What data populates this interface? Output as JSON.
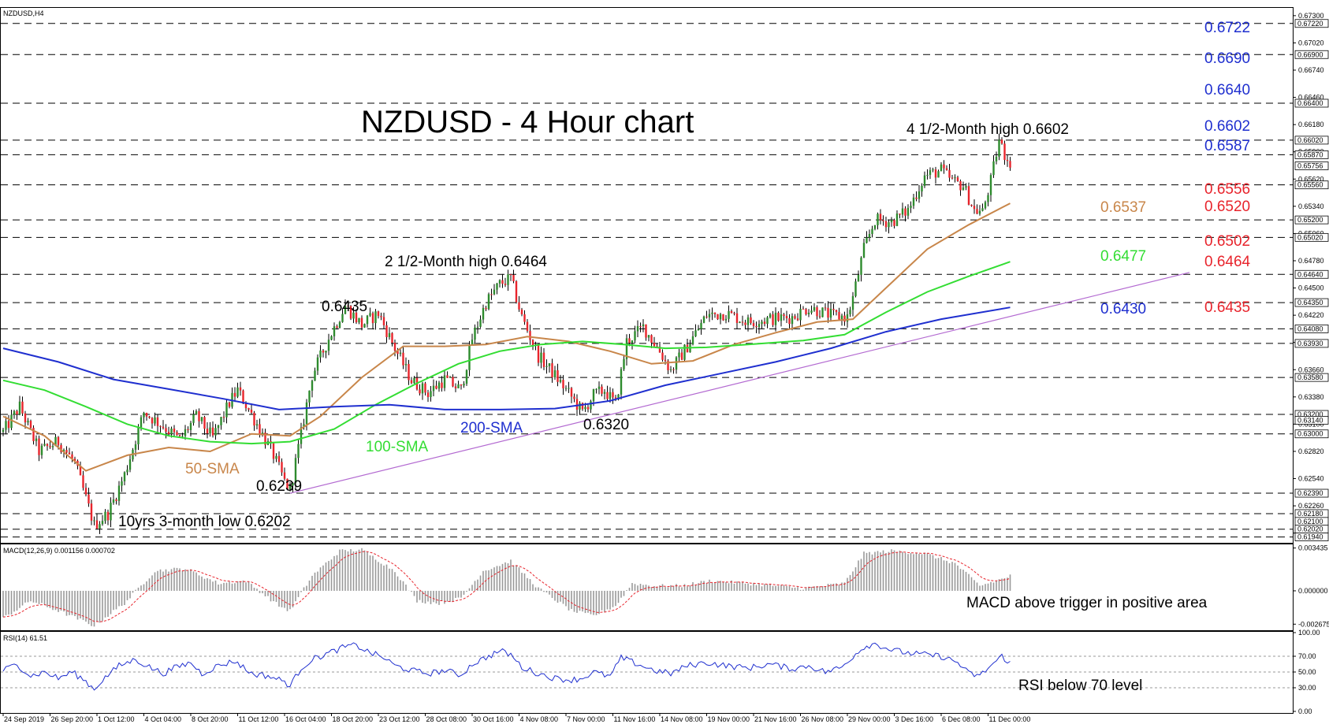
{
  "window": {
    "symbol_label": "NZDUSD,H4"
  },
  "chart_data": {
    "type": "line",
    "title": "NZDUSD - 4 Hour chart",
    "price_axis": {
      "ylim": [
        0.6188,
        0.6738
      ],
      "ticks": [
        "0.67300",
        "0.67020",
        "0.66740",
        "0.66460",
        "0.66180",
        "0.65900",
        "0.65620",
        "0.65340",
        "0.65060",
        "0.64780",
        "0.64500",
        "0.64220",
        "0.63940",
        "0.63660",
        "0.63380",
        "0.63100",
        "0.62820",
        "0.62540",
        "0.62260",
        "0.61980"
      ],
      "ticks_values": [
        0.673,
        0.6702,
        0.6674,
        0.6646,
        0.6618,
        0.659,
        0.6562,
        0.6534,
        0.6506,
        0.6478,
        0.645,
        0.6422,
        0.6394,
        0.6366,
        0.6338,
        0.631,
        0.6282,
        0.6254,
        0.6226,
        0.6198
      ],
      "tagged_levels": [
        {
          "value": 0.6722,
          "text": "0.67220"
        },
        {
          "value": 0.669,
          "text": "0.66900"
        },
        {
          "value": 0.664,
          "text": "0.66400"
        },
        {
          "value": 0.6602,
          "text": "0.66020"
        },
        {
          "value": 0.6587,
          "text": "0.65870"
        },
        {
          "value": 0.65756,
          "text": "0.65756"
        },
        {
          "value": 0.6556,
          "text": "0.65560"
        },
        {
          "value": 0.652,
          "text": "0.65200"
        },
        {
          "value": 0.6502,
          "text": "0.65020"
        },
        {
          "value": 0.6464,
          "text": "0.64640"
        },
        {
          "value": 0.6435,
          "text": "0.64350"
        },
        {
          "value": 0.6408,
          "text": "0.64080"
        },
        {
          "value": 0.6393,
          "text": "0.63930"
        },
        {
          "value": 0.6358,
          "text": "0.63580"
        },
        {
          "value": 0.632,
          "text": "0.63200"
        },
        {
          "value": 0.6314,
          "text": "0.63140"
        },
        {
          "value": 0.63,
          "text": "0.63000"
        },
        {
          "value": 0.6239,
          "text": "0.62390"
        },
        {
          "value": 0.6218,
          "text": "0.62180"
        },
        {
          "value": 0.621,
          "text": "0.62100"
        },
        {
          "value": 0.6202,
          "text": "0.62020"
        },
        {
          "value": 0.6194,
          "text": "0.61940"
        }
      ]
    },
    "x_axis": {
      "labels": [
        "24 Sep 2019",
        "26 Sep 20:00",
        "1 Oct 12:00",
        "4 Oct 04:00",
        "8 Oct 20:00",
        "11 Oct 12:00",
        "16 Oct 04:00",
        "18 Oct 20:00",
        "23 Oct 12:00",
        "28 Oct 08:00",
        "30 Oct 16:00",
        "4 Nov 08:00",
        "7 Nov 00:00",
        "11 Nov 16:00",
        "14 Nov 08:00",
        "19 Nov 00:00",
        "21 Nov 16:00",
        "26 Nov 08:00",
        "29 Nov 00:00",
        "3 Dec 16:00",
        "6 Dec 08:00",
        "11 Dec 00:00"
      ],
      "label_bar_index": [
        0,
        17,
        34,
        51,
        68,
        85,
        102,
        119,
        136,
        153,
        170,
        187,
        204,
        221,
        238,
        255,
        272,
        289,
        306,
        323,
        340,
        357
      ]
    },
    "horizontal_levels": [
      0.6722,
      0.669,
      0.664,
      0.6602,
      0.6587,
      0.6556,
      0.652,
      0.6502,
      0.6464,
      0.6435,
      0.6408,
      0.6393,
      0.6358,
      0.632,
      0.63,
      0.6239,
      0.6218,
      0.6202,
      0.6194
    ],
    "trendline": {
      "start": [
        104,
        0.6239
      ],
      "end": [
        430,
        0.6466
      ]
    },
    "price_path": [
      [
        0,
        0.6302
      ],
      [
        6,
        0.6328
      ],
      [
        13,
        0.6282
      ],
      [
        20,
        0.6292
      ],
      [
        26,
        0.627
      ],
      [
        33,
        0.6206
      ],
      [
        38,
        0.6218
      ],
      [
        44,
        0.6258
      ],
      [
        51,
        0.6322
      ],
      [
        58,
        0.6308
      ],
      [
        64,
        0.6294
      ],
      [
        70,
        0.6318
      ],
      [
        76,
        0.6296
      ],
      [
        82,
        0.6332
      ],
      [
        85,
        0.6345
      ],
      [
        92,
        0.631
      ],
      [
        98,
        0.6278
      ],
      [
        102,
        0.6251
      ],
      [
        104,
        0.6242
      ],
      [
        108,
        0.63
      ],
      [
        112,
        0.636
      ],
      [
        118,
        0.6398
      ],
      [
        124,
        0.6432
      ],
      [
        130,
        0.6412
      ],
      [
        136,
        0.6424
      ],
      [
        142,
        0.6388
      ],
      [
        148,
        0.6355
      ],
      [
        154,
        0.6342
      ],
      [
        160,
        0.6356
      ],
      [
        166,
        0.6345
      ],
      [
        170,
        0.6398
      ],
      [
        175,
        0.6435
      ],
      [
        180,
        0.6454
      ],
      [
        184,
        0.646
      ],
      [
        188,
        0.642
      ],
      [
        194,
        0.638
      ],
      [
        200,
        0.636
      ],
      [
        206,
        0.6338
      ],
      [
        210,
        0.6322
      ],
      [
        214,
        0.634
      ],
      [
        218,
        0.6345
      ],
      [
        222,
        0.633
      ],
      [
        226,
        0.6395
      ],
      [
        232,
        0.641
      ],
      [
        238,
        0.6385
      ],
      [
        242,
        0.6365
      ],
      [
        248,
        0.639
      ],
      [
        255,
        0.6422
      ],
      [
        262,
        0.6424
      ],
      [
        270,
        0.6415
      ],
      [
        278,
        0.6418
      ],
      [
        286,
        0.642
      ],
      [
        292,
        0.643
      ],
      [
        300,
        0.6422
      ],
      [
        306,
        0.642
      ],
      [
        308,
        0.644
      ],
      [
        312,
        0.649
      ],
      [
        316,
        0.652
      ],
      [
        322,
        0.6518
      ],
      [
        328,
        0.653
      ],
      [
        334,
        0.6565
      ],
      [
        340,
        0.6571
      ],
      [
        344,
        0.656
      ],
      [
        348,
        0.6555
      ],
      [
        352,
        0.653
      ],
      [
        355,
        0.6528
      ],
      [
        358,
        0.656
      ],
      [
        361,
        0.6602
      ],
      [
        363,
        0.6587
      ],
      [
        365,
        0.658
      ]
    ],
    "series": [
      {
        "name": "50-SMA",
        "color": "#c8864a",
        "values": [
          [
            0,
            0.6318
          ],
          [
            15,
            0.6298
          ],
          [
            30,
            0.6262
          ],
          [
            45,
            0.6278
          ],
          [
            60,
            0.6286
          ],
          [
            75,
            0.6282
          ],
          [
            90,
            0.63
          ],
          [
            104,
            0.6298
          ],
          [
            115,
            0.6318
          ],
          [
            130,
            0.6358
          ],
          [
            145,
            0.639
          ],
          [
            160,
            0.639
          ],
          [
            175,
            0.6392
          ],
          [
            190,
            0.64
          ],
          [
            205,
            0.6395
          ],
          [
            220,
            0.6385
          ],
          [
            235,
            0.6372
          ],
          [
            250,
            0.6375
          ],
          [
            265,
            0.6392
          ],
          [
            280,
            0.6404
          ],
          [
            295,
            0.6415
          ],
          [
            308,
            0.6418
          ],
          [
            320,
            0.645
          ],
          [
            335,
            0.649
          ],
          [
            350,
            0.6515
          ],
          [
            365,
            0.6537
          ]
        ]
      },
      {
        "name": "100-SMA",
        "color": "#33dd33",
        "values": [
          [
            0,
            0.6355
          ],
          [
            15,
            0.6345
          ],
          [
            30,
            0.6328
          ],
          [
            45,
            0.631
          ],
          [
            60,
            0.6298
          ],
          [
            75,
            0.6292
          ],
          [
            90,
            0.629
          ],
          [
            104,
            0.6292
          ],
          [
            120,
            0.6305
          ],
          [
            135,
            0.633
          ],
          [
            150,
            0.6352
          ],
          [
            165,
            0.6372
          ],
          [
            180,
            0.6385
          ],
          [
            195,
            0.6392
          ],
          [
            210,
            0.6395
          ],
          [
            225,
            0.6392
          ],
          [
            240,
            0.6388
          ],
          [
            255,
            0.6389
          ],
          [
            270,
            0.6392
          ],
          [
            290,
            0.6396
          ],
          [
            305,
            0.6402
          ],
          [
            320,
            0.6425
          ],
          [
            335,
            0.6446
          ],
          [
            350,
            0.6462
          ],
          [
            365,
            0.6477
          ]
        ]
      },
      {
        "name": "200-SMA",
        "color": "#1f2fcf",
        "values": [
          [
            0,
            0.6388
          ],
          [
            20,
            0.6374
          ],
          [
            40,
            0.6356
          ],
          [
            60,
            0.6346
          ],
          [
            80,
            0.6336
          ],
          [
            100,
            0.6325
          ],
          [
            120,
            0.6328
          ],
          [
            140,
            0.633
          ],
          [
            160,
            0.6325
          ],
          [
            180,
            0.6325
          ],
          [
            200,
            0.6326
          ],
          [
            220,
            0.6334
          ],
          [
            240,
            0.635
          ],
          [
            260,
            0.6362
          ],
          [
            280,
            0.6374
          ],
          [
            300,
            0.6388
          ],
          [
            320,
            0.6405
          ],
          [
            340,
            0.6418
          ],
          [
            365,
            0.643
          ]
        ]
      }
    ],
    "annotations": [
      {
        "text": "2 1/2-Month high 0.6464",
        "color": "#000000"
      },
      {
        "text": "4 1/2-Month high 0.6602",
        "color": "#000000"
      },
      {
        "text": "0.6435",
        "color": "#000000"
      },
      {
        "text": "0.6320",
        "color": "#000000"
      },
      {
        "text": "0.6239",
        "color": "#000000"
      },
      {
        "text": "10yrs 3-month low 0.6202",
        "color": "#000000"
      },
      {
        "text": "50-SMA",
        "color": "#c8864a"
      },
      {
        "text": "100-SMA",
        "color": "#33dd33"
      },
      {
        "text": "200-SMA",
        "color": "#1f2fcf"
      },
      {
        "text": "0.6537",
        "color": "#c8864a"
      },
      {
        "text": "0.6477",
        "color": "#33dd33"
      },
      {
        "text": "0.6430",
        "color": "#1f2fcf"
      }
    ],
    "resistance_labels": [
      "0.6722",
      "0.6690",
      "0.6640",
      "0.6602",
      "0.6587"
    ],
    "support_labels": [
      "0.6556",
      "0.6520",
      "0.6502",
      "0.6464",
      "0.6435"
    ],
    "resistance_color": "#1f2fcf",
    "support_color": "#e8242c",
    "macd": {
      "header": "MACD(12,26,9) 0.001156 0.000702",
      "ylim": [
        -0.0031,
        0.0036
      ],
      "tick_labels": [
        "0.003435",
        "0.000000",
        "-0.002675"
      ],
      "tick_values": [
        0.003435,
        0.0,
        -0.002675
      ],
      "trigger_color": "#e8242c",
      "histogram_color": "#999999",
      "histogram": [
        [
          0,
          -0.0022
        ],
        [
          10,
          -0.0008
        ],
        [
          20,
          -0.0016
        ],
        [
          33,
          -0.0028
        ],
        [
          44,
          -0.001
        ],
        [
          55,
          0.0016
        ],
        [
          66,
          0.0018
        ],
        [
          78,
          0.0006
        ],
        [
          88,
          0.0008
        ],
        [
          100,
          -0.0012
        ],
        [
          104,
          -0.0016
        ],
        [
          112,
          0.0012
        ],
        [
          122,
          0.0032
        ],
        [
          130,
          0.0033
        ],
        [
          142,
          0.0016
        ],
        [
          150,
          -0.0008
        ],
        [
          158,
          -0.001
        ],
        [
          166,
          -0.0006
        ],
        [
          174,
          0.0016
        ],
        [
          184,
          0.0024
        ],
        [
          194,
          0.0002
        ],
        [
          206,
          -0.0016
        ],
        [
          214,
          -0.002
        ],
        [
          222,
          -0.0012
        ],
        [
          228,
          0.0006
        ],
        [
          236,
          0.0004
        ],
        [
          246,
          0.0004
        ],
        [
          256,
          0.0008
        ],
        [
          270,
          0.0006
        ],
        [
          290,
          0.0002
        ],
        [
          305,
          0.0006
        ],
        [
          312,
          0.003
        ],
        [
          322,
          0.0032
        ],
        [
          334,
          0.003
        ],
        [
          345,
          0.0022
        ],
        [
          354,
          0.0004
        ],
        [
          360,
          0.0008
        ],
        [
          365,
          0.0012
        ]
      ],
      "annotation": "MACD above trigger in positive area"
    },
    "rsi": {
      "header": "RSI(14) 61.51",
      "ylim": [
        0,
        100
      ],
      "tick_labels": [
        "100.00",
        "70.00",
        "50.00",
        "30.00",
        "0.00"
      ],
      "tick_values": [
        100,
        70,
        50,
        30,
        0
      ],
      "levels": [
        70,
        50,
        30
      ],
      "line_color": "#1f2fcf",
      "values": [
        [
          0,
          52
        ],
        [
          5,
          60
        ],
        [
          10,
          45
        ],
        [
          15,
          50
        ],
        [
          20,
          42
        ],
        [
          25,
          50
        ],
        [
          30,
          38
        ],
        [
          33,
          28
        ],
        [
          36,
          40
        ],
        [
          42,
          58
        ],
        [
          48,
          66
        ],
        [
          52,
          58
        ],
        [
          58,
          48
        ],
        [
          62,
          55
        ],
        [
          68,
          62
        ],
        [
          72,
          48
        ],
        [
          78,
          58
        ],
        [
          84,
          64
        ],
        [
          90,
          48
        ],
        [
          96,
          45
        ],
        [
          102,
          38
        ],
        [
          104,
          32
        ],
        [
          108,
          55
        ],
        [
          112,
          66
        ],
        [
          118,
          74
        ],
        [
          124,
          82
        ],
        [
          128,
          84
        ],
        [
          132,
          76
        ],
        [
          138,
          68
        ],
        [
          142,
          58
        ],
        [
          148,
          52
        ],
        [
          154,
          48
        ],
        [
          160,
          52
        ],
        [
          166,
          46
        ],
        [
          170,
          60
        ],
        [
          176,
          70
        ],
        [
          180,
          77
        ],
        [
          184,
          72
        ],
        [
          188,
          56
        ],
        [
          194,
          48
        ],
        [
          200,
          42
        ],
        [
          206,
          40
        ],
        [
          210,
          42
        ],
        [
          214,
          50
        ],
        [
          220,
          44
        ],
        [
          224,
          68
        ],
        [
          230,
          60
        ],
        [
          236,
          52
        ],
        [
          242,
          48
        ],
        [
          248,
          58
        ],
        [
          255,
          62
        ],
        [
          262,
          58
        ],
        [
          270,
          55
        ],
        [
          278,
          60
        ],
        [
          286,
          54
        ],
        [
          292,
          58
        ],
        [
          298,
          50
        ],
        [
          304,
          56
        ],
        [
          308,
          70
        ],
        [
          312,
          82
        ],
        [
          316,
          86
        ],
        [
          322,
          78
        ],
        [
          328,
          74
        ],
        [
          334,
          72
        ],
        [
          340,
          70
        ],
        [
          346,
          62
        ],
        [
          350,
          48
        ],
        [
          354,
          45
        ],
        [
          358,
          58
        ],
        [
          362,
          70
        ],
        [
          365,
          61.51
        ]
      ],
      "annotation": "RSI below 70 level"
    }
  }
}
